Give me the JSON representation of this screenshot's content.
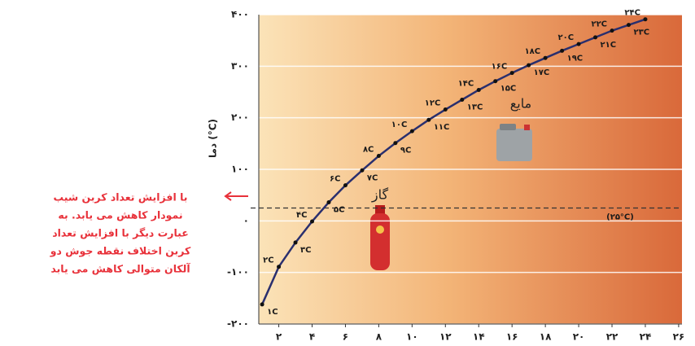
{
  "chart_data": {
    "type": "line",
    "x": [
      1,
      2,
      3,
      4,
      5,
      6,
      7,
      8,
      9,
      10,
      11,
      12,
      13,
      14,
      15,
      16,
      17,
      18,
      19,
      20,
      21,
      22,
      23,
      24
    ],
    "values": [
      -162,
      -89,
      -42,
      -1,
      36,
      69,
      98,
      126,
      151,
      174,
      196,
      216,
      235,
      254,
      271,
      287,
      302,
      316,
      330,
      343,
      356,
      369,
      380,
      391
    ],
    "point_labels": [
      "۱C",
      "۲C",
      "۳C",
      "۴C",
      "۵C",
      "۶C",
      "۷C",
      "۸C",
      "۹C",
      "۱۰C",
      "۱۱C",
      "۱۲C",
      "۱۳C",
      "۱۴C",
      "۱۵C",
      "۱۶C",
      "۱۷C",
      "۱۸C",
      "۱۹C",
      "۲۰C",
      "۲۱C",
      "۲۲C",
      "۲۳C",
      "۲۴C"
    ],
    "color": "#2a2f6e",
    "xlim": [
      0.8,
      26.2
    ],
    "xticks": [
      {
        "value": 2,
        "label": "۲"
      },
      {
        "value": 4,
        "label": "۴"
      },
      {
        "value": 6,
        "label": "۶"
      },
      {
        "value": 8,
        "label": "۸"
      },
      {
        "value": 10,
        "label": "۱۰"
      },
      {
        "value": 12,
        "label": "۱۲"
      },
      {
        "value": 14,
        "label": "۱۴"
      },
      {
        "value": 16,
        "label": "۱۶"
      },
      {
        "value": 18,
        "label": "۱۸"
      },
      {
        "value": 20,
        "label": "۲۰"
      },
      {
        "value": 22,
        "label": "۲۲"
      },
      {
        "value": 24,
        "label": "۲۴"
      },
      {
        "value": 26,
        "label": "۲۶"
      }
    ],
    "ylim": [
      -200,
      400
    ],
    "yticks": [
      {
        "value": -200,
        "label": "-۲۰۰"
      },
      {
        "value": -100,
        "label": "-۱۰۰"
      },
      {
        "value": 0,
        "label": "۰"
      },
      {
        "value": 100,
        "label": "۱۰۰"
      },
      {
        "value": 200,
        "label": "۲۰۰"
      },
      {
        "value": 300,
        "label": "۳۰۰"
      },
      {
        "value": 400,
        "label": "۴۰۰"
      }
    ],
    "grid": true,
    "y_label": "دما (°C)",
    "reference_line": {
      "value": 25,
      "label": "(۲۵°C)"
    },
    "region_labels": [
      "مایع",
      "گاز"
    ],
    "note": [
      "با افزایش تعداد کربن شیب",
      "نمودار کاهش می یابد. به",
      "عبارت دیگر با افزایش تعداد",
      "کربن اختلاف نقطه جوش دو",
      "آلکان متوالی کاهش می یابد"
    ]
  }
}
